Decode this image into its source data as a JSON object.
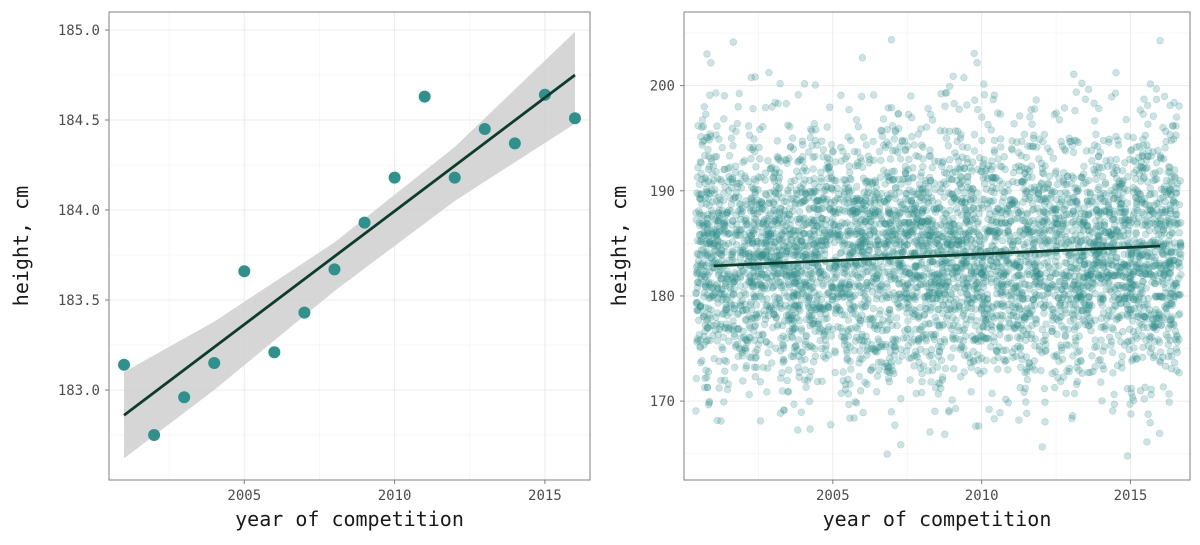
{
  "chart_data": [
    {
      "type": "scatter",
      "title": "",
      "xlabel": "year of competition",
      "ylabel": "height, cm",
      "xlim": [
        2000.5,
        2016.5
      ],
      "ylim": [
        182.5,
        185.1
      ],
      "x_ticks": [
        2005,
        2010,
        2015
      ],
      "y_ticks": [
        183.0,
        183.5,
        184.0,
        184.5,
        185.0
      ],
      "grid": true,
      "point_color": "#2e918c",
      "line_color": "#0b3d2e",
      "band_color": "#cfcfcf",
      "points": [
        {
          "x": 2001,
          "y": 183.14
        },
        {
          "x": 2002,
          "y": 182.75
        },
        {
          "x": 2003,
          "y": 182.96
        },
        {
          "x": 2004,
          "y": 183.15
        },
        {
          "x": 2005,
          "y": 183.66
        },
        {
          "x": 2006,
          "y": 183.21
        },
        {
          "x": 2007,
          "y": 183.43
        },
        {
          "x": 2008,
          "y": 183.67
        },
        {
          "x": 2009,
          "y": 183.93
        },
        {
          "x": 2010,
          "y": 184.18
        },
        {
          "x": 2011,
          "y": 184.63
        },
        {
          "x": 2012,
          "y": 184.18
        },
        {
          "x": 2013,
          "y": 184.45
        },
        {
          "x": 2014,
          "y": 184.37
        },
        {
          "x": 2015,
          "y": 184.64
        },
        {
          "x": 2016,
          "y": 184.51
        }
      ],
      "fit_line": {
        "x": [
          2001,
          2016
        ],
        "y": [
          182.86,
          184.75
        ]
      },
      "confidence_band": {
        "x": [
          2001,
          2004,
          2008,
          2012,
          2016
        ],
        "lower": [
          182.62,
          183.0,
          183.55,
          184.05,
          184.48
        ],
        "upper": [
          183.1,
          183.38,
          183.82,
          184.35,
          184.99
        ]
      }
    },
    {
      "type": "scatter",
      "title": "",
      "xlabel": "year of competition",
      "ylabel": "height, cm",
      "xlim": [
        2000.0,
        2017.0
      ],
      "ylim": [
        162.5,
        207.0
      ],
      "x_ticks": [
        2005,
        2010,
        2015
      ],
      "y_ticks": [
        170,
        180,
        190,
        200
      ],
      "grid": true,
      "point_color": "#2e918c",
      "point_opacity": 0.25,
      "line_color": "#0b3d2e",
      "jitter": {
        "x_range": [
          2000.4,
          2016.7
        ],
        "y_mean": 183.8,
        "y_sd": 6.0,
        "y_min": 164.5,
        "y_max": 205.5
      },
      "fit_line": {
        "x": [
          2001,
          2016
        ],
        "y": [
          182.86,
          184.75
        ]
      }
    }
  ]
}
